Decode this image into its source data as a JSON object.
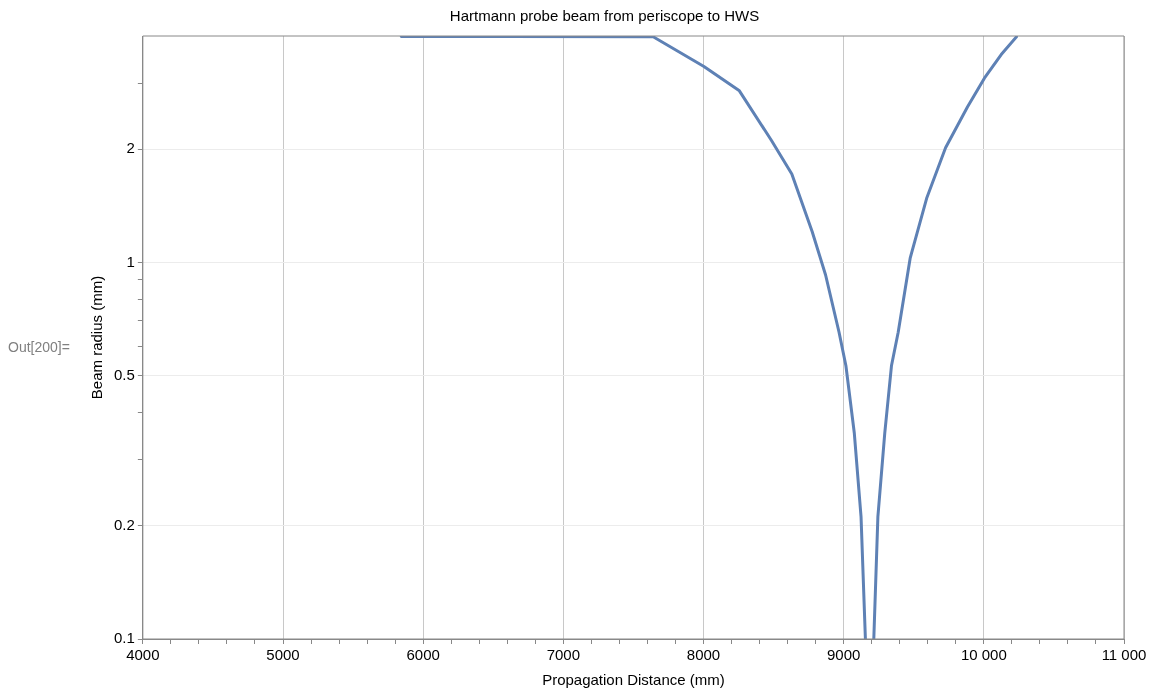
{
  "chart_data": {
    "type": "line",
    "title": "Hartmann probe beam from periscope to HWS",
    "xlabel": "Propagation Distance (mm)",
    "ylabel": "Beam radius (mm)",
    "annotations": [
      "Out[200]="
    ],
    "log": "y",
    "grid": true,
    "legend": false,
    "marker": "none",
    "line_style": "solid",
    "xlim": [
      4000,
      11000
    ],
    "ylim": [
      0.1,
      4
    ],
    "xticks": [
      4000,
      {
        "value": 4200,
        "label": null
      },
      {
        "value": 4400,
        "label": null
      },
      {
        "value": 4600,
        "label": null
      },
      {
        "value": 4800,
        "label": null
      },
      5000,
      {
        "value": 5200,
        "label": null
      },
      {
        "value": 5400,
        "label": null
      },
      {
        "value": 5600,
        "label": null
      },
      {
        "value": 5800,
        "label": null
      },
      6000,
      {
        "value": 6200,
        "label": null
      },
      {
        "value": 6400,
        "label": null
      },
      {
        "value": 6600,
        "label": null
      },
      {
        "value": 6800,
        "label": null
      },
      7000,
      {
        "value": 7200,
        "label": null
      },
      {
        "value": 7400,
        "label": null
      },
      {
        "value": 7600,
        "label": null
      },
      {
        "value": 7800,
        "label": null
      },
      8000,
      {
        "value": 8200,
        "label": null
      },
      {
        "value": 8400,
        "label": null
      },
      {
        "value": 8600,
        "label": null
      },
      {
        "value": 8800,
        "label": null
      },
      9000,
      {
        "value": 9200,
        "label": null
      },
      {
        "value": 9400,
        "label": null
      },
      {
        "value": 9600,
        "label": null
      },
      {
        "value": 9800,
        "label": null
      },
      {
        "value": 10000,
        "label": "10 000"
      },
      {
        "value": 10200,
        "label": null
      },
      {
        "value": 10400,
        "label": null
      },
      {
        "value": 10600,
        "label": null
      },
      {
        "value": 10800,
        "label": null
      },
      {
        "value": 11000,
        "label": "11 000"
      }
    ],
    "yticks": [
      0.1,
      0.2,
      {
        "value": 0.3,
        "label": null
      },
      {
        "value": 0.4,
        "label": null
      },
      0.5,
      {
        "value": 0.6,
        "label": null
      },
      {
        "value": 0.7,
        "label": null
      },
      {
        "value": 0.8,
        "label": null
      },
      {
        "value": 0.9,
        "label": null
      },
      1,
      2,
      {
        "value": 3,
        "label": null
      }
    ],
    "series": [
      {
        "color": "#5e81b5",
        "x": [
          5844,
          7641,
          8003,
          8256,
          8485,
          8630,
          8775,
          8871,
          8967,
          9016,
          9076,
          9124,
          9155,
          null,
          9215,
          9244,
          9293,
          9341,
          9389,
          9475,
          9594,
          9727,
          9883,
          10004,
          10124,
          10233
        ],
        "values": [
          3.99,
          3.98,
          3.32,
          2.86,
          2.11,
          1.72,
          1.21,
          0.927,
          0.653,
          0.532,
          0.352,
          0.211,
          0.1,
          null,
          0.1,
          0.211,
          0.352,
          0.532,
          0.653,
          1.03,
          1.49,
          2.02,
          2.59,
          3.09,
          3.57,
          3.98
        ]
      }
    ]
  }
}
